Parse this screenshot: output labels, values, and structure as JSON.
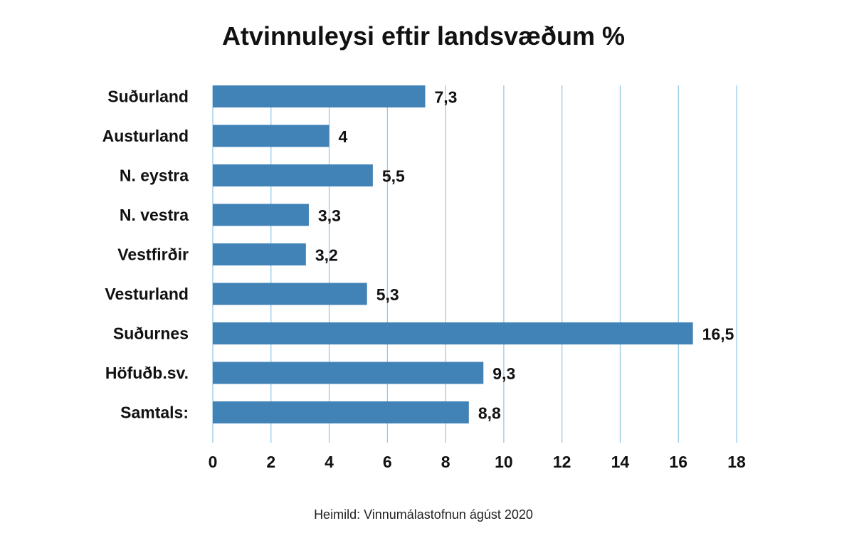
{
  "title": "Atvinnuleysi eftir landsvæðum %",
  "source": "Heimild: Vinnumálastofnun ágúst 2020",
  "colors": {
    "bar": "#4183b7",
    "grid": "#8ec6e4"
  },
  "chart_data": {
    "type": "bar",
    "orientation": "horizontal",
    "title": "Atvinnuleysi eftir landsvæðum %",
    "categories": [
      "Suðurland",
      "Austurland",
      "N. eystra",
      "N. vestra",
      "Vestfirðir",
      "Vesturland",
      "Suðurnes",
      "Höfuðb.sv.",
      "Samtals:"
    ],
    "values": [
      7.3,
      4,
      5.5,
      3.3,
      3.2,
      5.3,
      16.5,
      9.3,
      8.8
    ],
    "value_labels": [
      "7,3",
      "4",
      "5,5",
      "3,3",
      "3,2",
      "5,3",
      "16,5",
      "9,3",
      "8,8"
    ],
    "xlim": [
      0,
      18
    ],
    "xticks": [
      "0",
      "2",
      "4",
      "6",
      "8",
      "10",
      "12",
      "14",
      "16",
      "18"
    ],
    "grid": true,
    "legend": "none"
  }
}
